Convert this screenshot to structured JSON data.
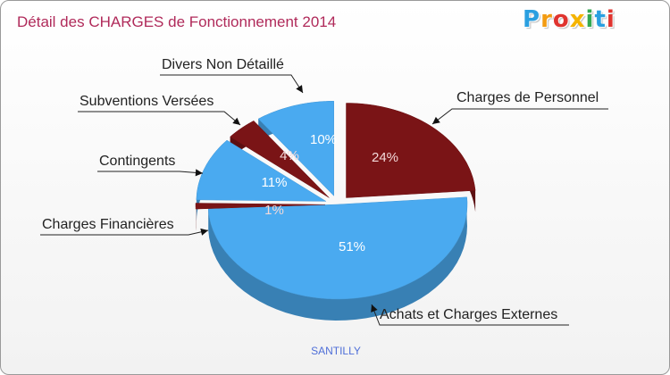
{
  "title": "Détail des CHARGES de Fonctionnement 2014",
  "logo": {
    "letters": [
      "P",
      "r",
      "o",
      "x",
      "i",
      "t",
      "i"
    ],
    "colors": [
      "#2a9fe0",
      "#f39c12",
      "#e0342f",
      "#f5b400",
      "#33a852",
      "#2a9fe0",
      "#e0342f"
    ]
  },
  "footer": "SANTILLY",
  "colors": {
    "blue": "#4aaaf0",
    "dark_red": "#7a1416"
  },
  "chart_data": {
    "type": "pie",
    "title": "Détail des CHARGES de Fonctionnement 2014",
    "slices": [
      {
        "label": "Charges de Personnel",
        "value": 24,
        "pct_text": "24%",
        "color": "#7a1416"
      },
      {
        "label": "Achats et Charges Externes",
        "value": 51,
        "pct_text": "51%",
        "color": "#4aaaf0"
      },
      {
        "label": "Charges Financières",
        "value": 1,
        "pct_text": "1%",
        "color": "#7a1416"
      },
      {
        "label": "Contingents",
        "value": 11,
        "pct_text": "11%",
        "color": "#4aaaf0"
      },
      {
        "label": "Subventions Versées",
        "value": 4,
        "pct_text": "4%",
        "color": "#7a1416"
      },
      {
        "label": "Divers Non Détaillé",
        "value": 10,
        "pct_text": "10%",
        "color": "#4aaaf0"
      }
    ]
  }
}
